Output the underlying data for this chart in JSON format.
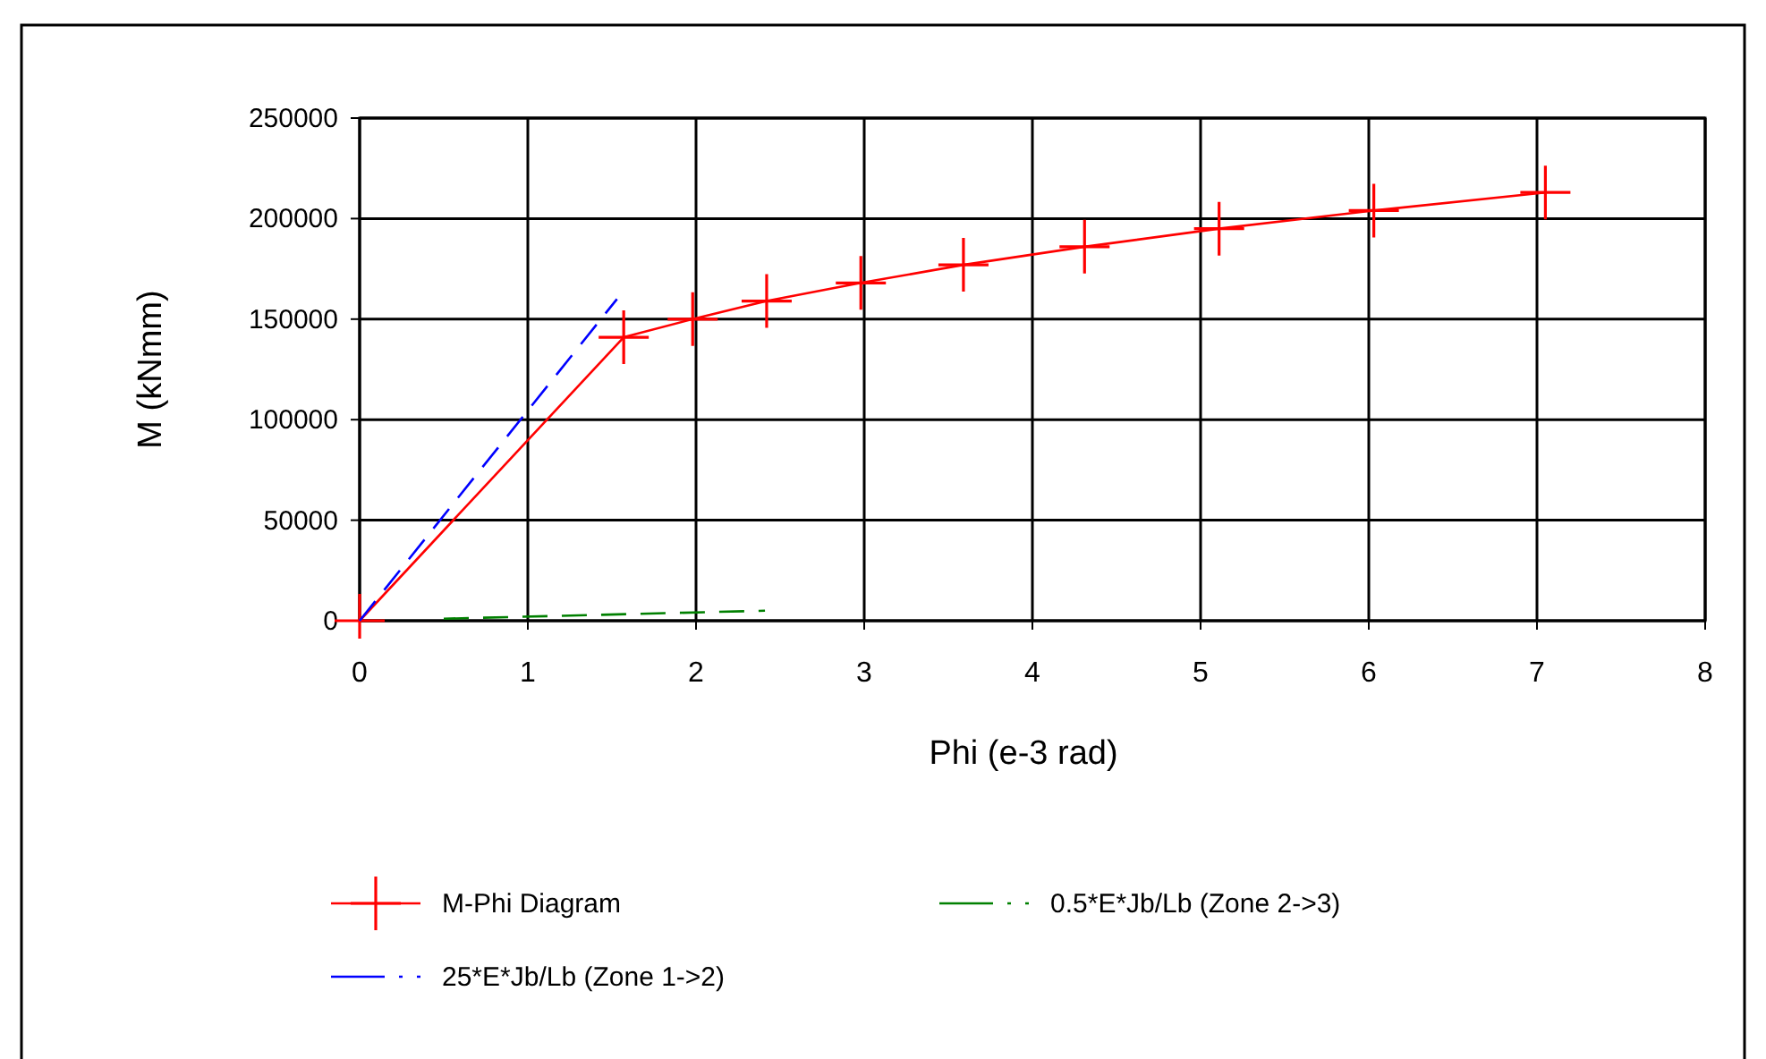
{
  "chart_data": {
    "type": "line",
    "xlabel": "Phi (e-3 rad)",
    "ylabel": "M (kNmm)",
    "xlim": [
      0,
      8
    ],
    "xticks": [
      0,
      1,
      2,
      3,
      4,
      5,
      6,
      7,
      8
    ],
    "ylim": [
      0,
      250000
    ],
    "yticks": [
      0,
      50000,
      100000,
      150000,
      200000,
      250000
    ],
    "grid": true,
    "legend": "bottom",
    "series": [
      {
        "name": "M-Phi Diagram",
        "color": "#ff0000",
        "marker": "cross",
        "line_style": "solid",
        "x": [
          0,
          1.57,
          1.98,
          2.42,
          2.98,
          3.59,
          4.31,
          5.11,
          6.03,
          7.05
        ],
        "values": [
          0,
          141000,
          150000,
          159000,
          168000,
          177000,
          186000,
          195000,
          204000,
          213000
        ]
      },
      {
        "name": "0.5*E*Jb/Lb (Zone 2->3)",
        "color": "#008000",
        "marker": "none",
        "line_style": "dashed",
        "x": [
          0.5,
          2.41
        ],
        "values": [
          1000,
          5000
        ]
      },
      {
        "name": "25*E*Jb/Lb (Zone 1->2)",
        "color": "#0000ff",
        "marker": "none",
        "line_style": "dashed",
        "x": [
          0,
          1.53
        ],
        "values": [
          0,
          160000
        ]
      }
    ]
  }
}
